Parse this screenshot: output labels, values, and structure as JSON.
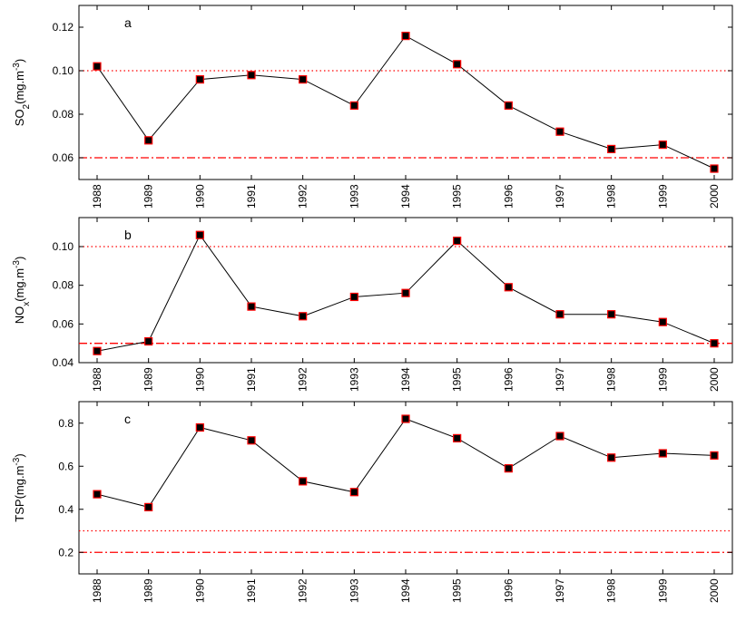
{
  "chart_data": [
    {
      "type": "line",
      "panel_label": "a",
      "ylabel": {
        "base": "SO",
        "sub": "2",
        "unit": "(mg.m",
        "sup": "-3",
        "close": ")"
      },
      "x": [
        "1988",
        "1989",
        "1990",
        "1991",
        "1992",
        "1993",
        "1994",
        "1995",
        "1996",
        "1997",
        "1998",
        "1999",
        "2000"
      ],
      "values": [
        0.102,
        0.068,
        0.096,
        0.098,
        0.096,
        0.084,
        0.116,
        0.103,
        0.084,
        0.072,
        0.064,
        0.066,
        0.055
      ],
      "ylim": [
        0.05,
        0.13
      ],
      "yticks": [
        0.06,
        0.08,
        0.1,
        0.12
      ],
      "ytick_labels": [
        "0.06",
        "0.08",
        "0.10",
        "0.12"
      ],
      "reference_lines": [
        {
          "value": 0.1,
          "style": "dotted",
          "color": "#ff0000"
        },
        {
          "value": 0.06,
          "style": "dashdot",
          "color": "#ff0000"
        }
      ],
      "marker": {
        "shape": "square",
        "fill": "#000000",
        "edge": "#ff0000"
      },
      "line_color": "#000000"
    },
    {
      "type": "line",
      "panel_label": "b",
      "ylabel": {
        "base": "NO",
        "sub": "x",
        "unit": "(mg.m",
        "sup": "-3",
        "close": ")"
      },
      "x": [
        "1988",
        "1989",
        "1990",
        "1991",
        "1992",
        "1993",
        "1994",
        "1995",
        "1996",
        "1997",
        "1998",
        "1999",
        "2000"
      ],
      "values": [
        0.046,
        0.051,
        0.106,
        0.069,
        0.064,
        0.074,
        0.076,
        0.103,
        0.079,
        0.065,
        0.065,
        0.061,
        0.05
      ],
      "ylim": [
        0.04,
        0.115
      ],
      "yticks": [
        0.04,
        0.06,
        0.08,
        0.1
      ],
      "ytick_labels": [
        "0.04",
        "0.06",
        "0.08",
        "0.10"
      ],
      "reference_lines": [
        {
          "value": 0.1,
          "style": "dotted",
          "color": "#ff0000"
        },
        {
          "value": 0.05,
          "style": "dashdot",
          "color": "#ff0000"
        }
      ],
      "marker": {
        "shape": "square",
        "fill": "#000000",
        "edge": "#ff0000"
      },
      "line_color": "#000000"
    },
    {
      "type": "line",
      "panel_label": "c",
      "ylabel": {
        "base": "TSP",
        "sub": "",
        "unit": "(mg.m",
        "sup": "-3",
        "close": ")"
      },
      "x": [
        "1988",
        "1989",
        "1990",
        "1991",
        "1992",
        "1993",
        "1994",
        "1995",
        "1996",
        "1997",
        "1998",
        "1999",
        "2000"
      ],
      "values": [
        0.47,
        0.41,
        0.78,
        0.72,
        0.53,
        0.48,
        0.82,
        0.73,
        0.59,
        0.74,
        0.64,
        0.66,
        0.65
      ],
      "ylim": [
        0.1,
        0.9
      ],
      "yticks": [
        0.2,
        0.4,
        0.6,
        0.8
      ],
      "ytick_labels": [
        "0.2",
        "0.4",
        "0.6",
        "0.8"
      ],
      "reference_lines": [
        {
          "value": 0.3,
          "style": "dotted",
          "color": "#ff0000"
        },
        {
          "value": 0.2,
          "style": "dashdot",
          "color": "#ff0000"
        }
      ],
      "marker": {
        "shape": "square",
        "fill": "#000000",
        "edge": "#ff0000"
      },
      "line_color": "#000000"
    }
  ]
}
